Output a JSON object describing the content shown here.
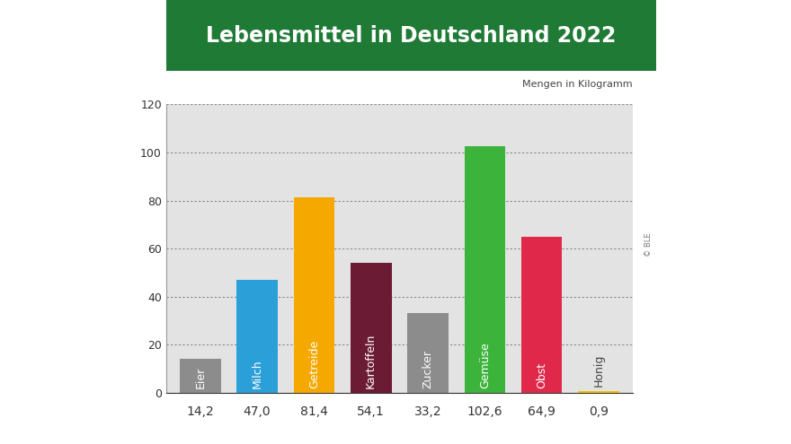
{
  "chart_data": {
    "type": "bar",
    "title": "Lebensmittel in Deutschland 2022",
    "subtitle": "Mengen in Kilogramm",
    "credit": "© BLE",
    "categories": [
      "Eier",
      "Milch",
      "Getreide",
      "Kartoffeln",
      "Zucker",
      "Gemüse",
      "Obst",
      "Honig"
    ],
    "values": [
      14.2,
      47.0,
      81.4,
      54.1,
      33.2,
      102.6,
      64.9,
      0.9
    ],
    "value_labels": [
      "14,2",
      "47,0",
      "81,4",
      "54,1",
      "33,2",
      "102,6",
      "64,9",
      "0,9"
    ],
    "colors": [
      "#8c8c8c",
      "#2a9fd8",
      "#f5a800",
      "#6b1b34",
      "#8c8c8c",
      "#3cb43c",
      "#e0284a",
      "#f2c200"
    ],
    "ylim": [
      0,
      120
    ],
    "yticks": [
      0,
      20,
      40,
      60,
      80,
      100,
      120
    ],
    "grid": true,
    "data_labels": true
  }
}
